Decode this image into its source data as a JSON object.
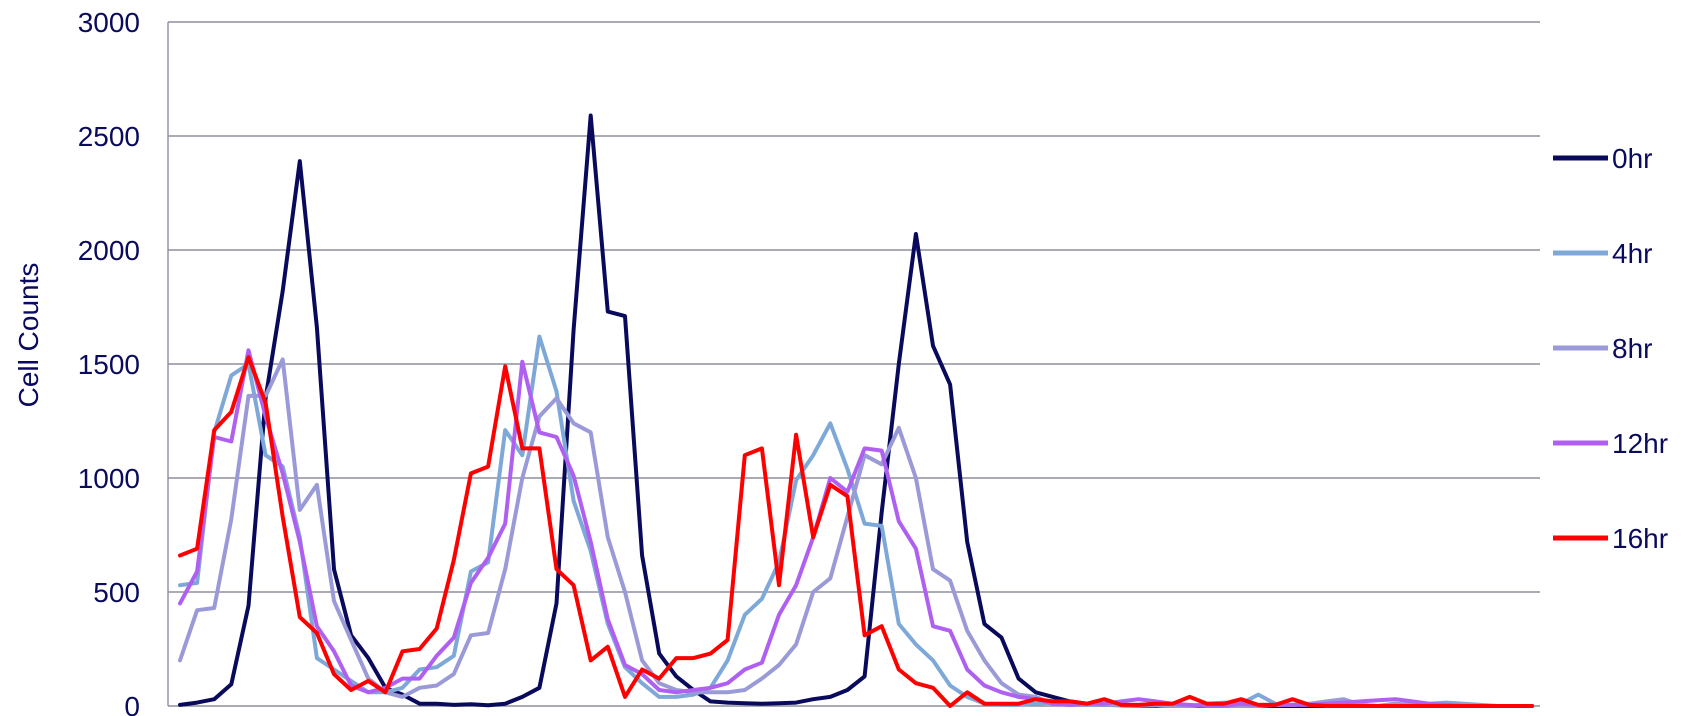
{
  "chart_data": {
    "type": "line",
    "ylabel": "Cell Counts",
    "ylim": [
      0,
      3000
    ],
    "yticks": [
      0,
      500,
      1000,
      1500,
      2000,
      2500,
      3000
    ],
    "grid": true,
    "legend_position": "right",
    "x": [
      1,
      2,
      3,
      4,
      5,
      6,
      7,
      8,
      9,
      10,
      11,
      12,
      13,
      14,
      15,
      16,
      17,
      18,
      19,
      20,
      21,
      22,
      23,
      24,
      25,
      26,
      27,
      28,
      29,
      30,
      31,
      32,
      33,
      34,
      35,
      36,
      37,
      38,
      39,
      40,
      41,
      42,
      43,
      44,
      45,
      46,
      47,
      48,
      49,
      50,
      51,
      52,
      53,
      54,
      55,
      56,
      57,
      58,
      59,
      60,
      61,
      62,
      63,
      64,
      65,
      66,
      67,
      68,
      69,
      70,
      71,
      72,
      73,
      74,
      75,
      76,
      77,
      78,
      79,
      80
    ],
    "series": [
      {
        "name": "0hr",
        "color": "#0a0a5c",
        "values": [
          5,
          15,
          30,
          95,
          440,
          1350,
          1820,
          2390,
          1660,
          600,
          310,
          210,
          80,
          50,
          10,
          10,
          5,
          8,
          3,
          10,
          40,
          80,
          450,
          1650,
          2590,
          1730,
          1710,
          660,
          230,
          130,
          70,
          20,
          15,
          12,
          10,
          12,
          15,
          30,
          40,
          70,
          130,
          850,
          1500,
          2070,
          1580,
          1410,
          720,
          360,
          300,
          120,
          60,
          40,
          20,
          10,
          5,
          3,
          2,
          1,
          1,
          1,
          0,
          0,
          0,
          0,
          0,
          0,
          0,
          0,
          0,
          0,
          0,
          0,
          0,
          0,
          0,
          0,
          0,
          0,
          0,
          0
        ]
      },
      {
        "name": "4hr",
        "color": "#7ea8d8",
        "values": [
          530,
          540,
          1200,
          1450,
          1500,
          1100,
          1050,
          740,
          210,
          160,
          110,
          60,
          60,
          80,
          160,
          170,
          220,
          590,
          630,
          1210,
          1100,
          1620,
          1380,
          900,
          680,
          360,
          170,
          100,
          40,
          40,
          50,
          80,
          200,
          400,
          470,
          630,
          990,
          1100,
          1240,
          1040,
          800,
          790,
          360,
          270,
          200,
          90,
          40,
          10,
          5,
          5,
          10,
          15,
          5,
          5,
          5,
          5,
          5,
          5,
          0,
          0,
          10,
          15,
          10,
          50,
          10,
          5,
          10,
          5,
          0,
          5,
          0,
          10,
          5,
          10,
          15,
          10,
          5,
          0,
          0,
          0
        ]
      },
      {
        "name": "8hr",
        "color": "#9a9ad8",
        "values": [
          200,
          420,
          430,
          820,
          1360,
          1360,
          1520,
          860,
          970,
          460,
          290,
          120,
          60,
          40,
          80,
          90,
          140,
          310,
          320,
          600,
          1000,
          1270,
          1350,
          1240,
          1200,
          740,
          500,
          200,
          100,
          70,
          60,
          60,
          60,
          70,
          120,
          180,
          270,
          500,
          560,
          830,
          1100,
          1060,
          1220,
          1000,
          600,
          550,
          330,
          200,
          100,
          50,
          40,
          10,
          5,
          10,
          5,
          5,
          5,
          5,
          0,
          0,
          5,
          0,
          0,
          0,
          5,
          5,
          10,
          20,
          30,
          5,
          0,
          10,
          0,
          0,
          0,
          0,
          0,
          0,
          0,
          0
        ]
      },
      {
        "name": "12hr",
        "color": "#b060f0",
        "values": [
          450,
          590,
          1180,
          1160,
          1560,
          1270,
          1020,
          720,
          350,
          240,
          90,
          60,
          80,
          120,
          120,
          220,
          300,
          540,
          650,
          800,
          1510,
          1200,
          1180,
          1010,
          720,
          380,
          180,
          140,
          70,
          60,
          70,
          80,
          100,
          160,
          190,
          400,
          530,
          740,
          1000,
          940,
          1130,
          1120,
          810,
          690,
          350,
          330,
          160,
          90,
          60,
          40,
          30,
          10,
          5,
          10,
          10,
          20,
          30,
          20,
          10,
          5,
          0,
          0,
          10,
          5,
          5,
          5,
          5,
          10,
          15,
          20,
          25,
          30,
          20,
          10,
          5,
          0,
          0,
          0,
          0,
          0
        ]
      },
      {
        "name": "16hr",
        "color": "#ff0000",
        "values": [
          660,
          690,
          1210,
          1290,
          1530,
          1330,
          830,
          390,
          320,
          140,
          70,
          110,
          60,
          240,
          250,
          340,
          640,
          1020,
          1050,
          1490,
          1130,
          1130,
          600,
          530,
          200,
          260,
          40,
          160,
          120,
          210,
          210,
          230,
          290,
          1100,
          1130,
          530,
          1190,
          740,
          970,
          920,
          310,
          350,
          160,
          100,
          80,
          0,
          60,
          10,
          10,
          10,
          30,
          20,
          20,
          10,
          30,
          5,
          5,
          10,
          10,
          40,
          10,
          10,
          30,
          5,
          5,
          30,
          5,
          0,
          0,
          0,
          0,
          0,
          0,
          0,
          0,
          0,
          0,
          0,
          0,
          0
        ]
      }
    ]
  }
}
